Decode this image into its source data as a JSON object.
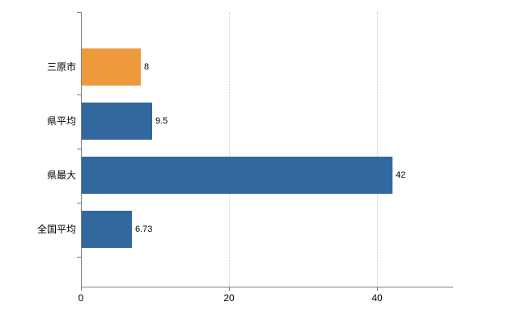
{
  "chart_data": {
    "type": "bar",
    "orientation": "horizontal",
    "title": "",
    "categories": [
      "三原市",
      "県平均",
      "県最大",
      "全国平均"
    ],
    "values": [
      8,
      9.5,
      42,
      6.73
    ],
    "value_labels": [
      "8",
      "9.5",
      "42",
      "6.73"
    ],
    "bar_colors": [
      "#ee9a3c",
      "#31689e",
      "#31689e",
      "#31689e"
    ],
    "x_ticks": [
      0,
      20,
      40
    ],
    "x_tick_labels": [
      "0",
      "20",
      "40"
    ],
    "xlim": [
      0,
      50.3
    ],
    "grid": {
      "vertical": true,
      "style": "dotted",
      "color": "#cccccc"
    },
    "axis_color": "#808080",
    "text_color": "#000000",
    "legend": null,
    "background_color": "#ffffff"
  }
}
